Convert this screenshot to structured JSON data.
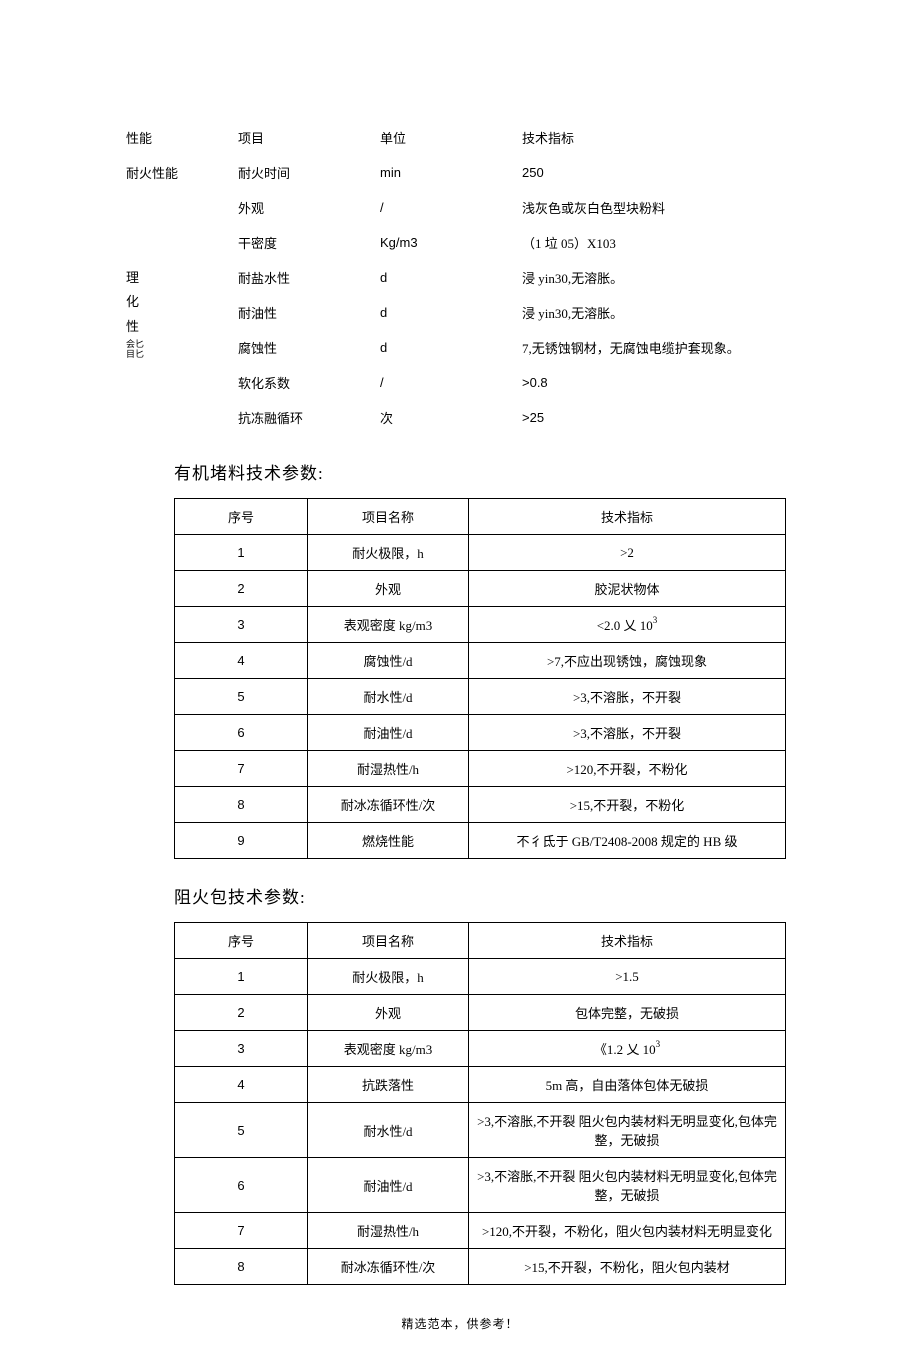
{
  "topTable": {
    "headers": {
      "perf": "性能",
      "item": "项目",
      "unit": "单位",
      "spec": "技术指标"
    },
    "row1": {
      "perf": "耐火性能",
      "item": "耐火时间",
      "unit": "min",
      "spec": "250"
    },
    "group2Label": "理\n化\n性\n能",
    "group2LabelLines": [
      "理",
      "化",
      "性",
      "能"
    ],
    "group2SmallA": "会匕",
    "group2SmallB": "目匕",
    "rows": [
      {
        "item": "外观",
        "unit": "/",
        "spec": "浅灰色或灰白色型块粉料"
      },
      {
        "item": "干密度",
        "unit": "Kg/m3",
        "spec": "（1 垃 05）X103"
      },
      {
        "item": "耐盐水性",
        "unit": "d",
        "spec": "浸 yin30,无溶胀。"
      },
      {
        "item": "耐油性",
        "unit": "d",
        "spec": "浸 yin30,无溶胀。"
      },
      {
        "item": "腐蚀性",
        "unit": "d",
        "spec": "7,无锈蚀钢材，无腐蚀电缆护套现象。"
      },
      {
        "item": "软化系数",
        "unit": "/",
        "spec": ">0.8"
      },
      {
        "item": "抗冻融循环",
        "unit": "次",
        "spec": ">25"
      }
    ]
  },
  "section2": {
    "title": "有机堵料技术参数:",
    "headers": {
      "no": "序号",
      "name": "项目名称",
      "spec": "技术指标"
    },
    "rows": [
      {
        "no": "1",
        "name": "耐火极限，h",
        "spec": ">2"
      },
      {
        "no": "2",
        "name": "外观",
        "spec": "胶泥状物体"
      },
      {
        "no": "3",
        "name": "表观密度 kg/m3",
        "spec_html": "<2.0 乂 10<span class='sup'>3</span>"
      },
      {
        "no": "4",
        "name": "腐蚀性/d",
        "spec": ">7,不应出现锈蚀，腐蚀现象"
      },
      {
        "no": "5",
        "name": "耐水性/d",
        "spec": ">3,不溶胀，不开裂"
      },
      {
        "no": "6",
        "name": "耐油性/d",
        "spec": ">3,不溶胀，不开裂"
      },
      {
        "no": "7",
        "name": "耐湿热性/h",
        "spec": ">120,不开裂，不粉化"
      },
      {
        "no": "8",
        "name": "耐冰冻循环性/次",
        "spec": ">15,不开裂，不粉化"
      },
      {
        "no": "9",
        "name": "燃烧性能",
        "spec": "不彳氐于 GB/T2408-2008 规定的 HB 级"
      }
    ]
  },
  "section3": {
    "title": "阻火包技术参数:",
    "headers": {
      "no": "序号",
      "name": "项目名称",
      "spec": "技术指标"
    },
    "rows": [
      {
        "no": "1",
        "name": "耐火极限，h",
        "spec": ">1.5"
      },
      {
        "no": "2",
        "name": "外观",
        "spec": "包体完整，无破损"
      },
      {
        "no": "3",
        "name": "表观密度 kg/m3",
        "spec_html": "《1.2 乂 10<span class='sup'>3</span>"
      },
      {
        "no": "4",
        "name": "抗跌落性",
        "spec": "5m 高，自由落体包体无破损"
      },
      {
        "no": "5",
        "name": "耐水性/d",
        "spec": ">3,不溶胀,不开裂 阻火包内装材料无明显变化,包体完整，无破损"
      },
      {
        "no": "6",
        "name": "耐油性/d",
        "spec": ">3,不溶胀,不开裂 阻火包内装材料无明显变化,包体完整，无破损"
      },
      {
        "no": "7",
        "name": "耐湿热性/h",
        "spec": ">120,不开裂，不粉化，阻火包内装材料无明显变化"
      },
      {
        "no": "8",
        "name": "耐冰冻循环性/次",
        "spec": ">15,不开裂，不粉化，阻火包内装材"
      }
    ]
  },
  "footer": "精选范本，供参考！"
}
